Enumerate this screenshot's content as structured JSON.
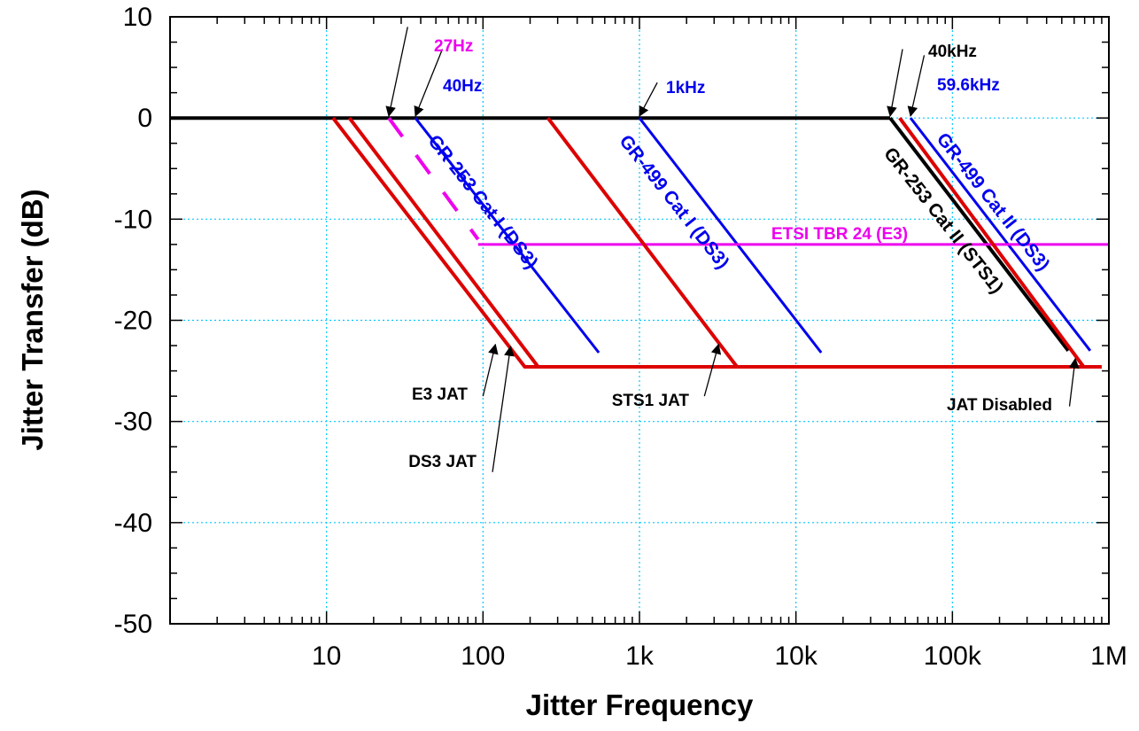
{
  "chart_data": {
    "type": "line",
    "xlabel": "Jitter Frequency",
    "ylabel": "Jitter Transfer (dB)",
    "xscale": "log",
    "xlim": [
      1,
      1000000
    ],
    "ylim": [
      -50,
      10
    ],
    "grid": true,
    "x_ticks": [
      {
        "value": 10,
        "label": "10"
      },
      {
        "value": 100,
        "label": "100"
      },
      {
        "value": 1000,
        "label": "1k"
      },
      {
        "value": 10000,
        "label": "10k"
      },
      {
        "value": 100000,
        "label": "100k"
      },
      {
        "value": 1000000,
        "label": "1M"
      }
    ],
    "y_ticks": [
      {
        "value": 10,
        "label": "10"
      },
      {
        "value": 0,
        "label": "0"
      },
      {
        "value": -10,
        "label": "-10"
      },
      {
        "value": -20,
        "label": "-20"
      },
      {
        "value": -30,
        "label": "-30"
      },
      {
        "value": -40,
        "label": "-40"
      },
      {
        "value": -50,
        "label": "-50"
      }
    ],
    "series": [
      {
        "name": "JAT Disabled",
        "color": "#000000",
        "width": 4,
        "x": [
          1,
          40000
        ],
        "y": [
          0,
          0
        ]
      },
      {
        "name": "GR-253 Cat II (STS1)",
        "color": "#000000",
        "width": 4,
        "x": [
          40000,
          550000
        ],
        "y": [
          0,
          -23
        ]
      },
      {
        "name": "GR-253 Cat I (DS3)",
        "color": "#0000ee",
        "width": 3,
        "x": [
          37,
          550
        ],
        "y": [
          0,
          -23.2
        ]
      },
      {
        "name": "GR-499 Cat I (DS3)",
        "color": "#0000ee",
        "width": 3,
        "x": [
          1000,
          14500
        ],
        "y": [
          0,
          -23.2
        ]
      },
      {
        "name": "GR-499 Cat II (DS3)",
        "color": "#0000ee",
        "width": 3,
        "x": [
          54000,
          760000
        ],
        "y": [
          0,
          -23
        ]
      },
      {
        "name": "ETSI TBR 24 (E3)",
        "color": "#ee00ee",
        "width": 3,
        "x": [
          93,
          1000000
        ],
        "y": [
          -12.5,
          -12.5
        ]
      },
      {
        "name": "ETSI TBR 24 (E3)",
        "color": "#ee00ee",
        "width": 4,
        "dash": true,
        "x": [
          25,
          93
        ],
        "y": [
          0,
          -12
        ]
      },
      {
        "name": "E3 JAT",
        "color": "#dd0000",
        "width": 4,
        "x": [
          11,
          185,
          900000
        ],
        "y": [
          0,
          -24.6,
          -24.6
        ]
      },
      {
        "name": "DS3 JAT",
        "color": "#dd0000",
        "width": 4,
        "x": [
          14,
          225
        ],
        "y": [
          0,
          -24.6
        ]
      },
      {
        "name": "STS1 JAT",
        "color": "#dd0000",
        "width": 4,
        "x": [
          260,
          4200
        ],
        "y": [
          0,
          -24.6
        ]
      },
      {
        "name": "JAT Disabled",
        "color": "#dd0000",
        "width": 4,
        "x": [
          46000,
          690000
        ],
        "y": [
          0,
          -24.6
        ]
      }
    ],
    "annotations": [
      {
        "text": "27Hz",
        "color": "#ee00ee"
      },
      {
        "text": "40Hz",
        "color": "#0000ee"
      },
      {
        "text": "1kHz",
        "color": "#0000ee"
      },
      {
        "text": "40kHz",
        "color": "#000000"
      },
      {
        "text": "59.6kHz",
        "color": "#0000ee"
      },
      {
        "text": "E3 JAT",
        "color": "#000000"
      },
      {
        "text": "DS3 JAT",
        "color": "#000000"
      },
      {
        "text": "STS1 JAT",
        "color": "#000000"
      },
      {
        "text": "JAT Disabled",
        "color": "#000000"
      },
      {
        "text": "ETSI TBR 24 (E3)",
        "color": "#ee00ee"
      }
    ],
    "curve_labels": [
      {
        "text": "GR-253 Cat I (DS3)",
        "color": "#0000ee"
      },
      {
        "text": "GR-499 Cat I (DS3)",
        "color": "#0000ee"
      },
      {
        "text": "GR-253 Cat II (STS1)",
        "color": "#000000"
      },
      {
        "text": "GR-499 Cat II (DS3)",
        "color": "#0000ee"
      }
    ]
  }
}
